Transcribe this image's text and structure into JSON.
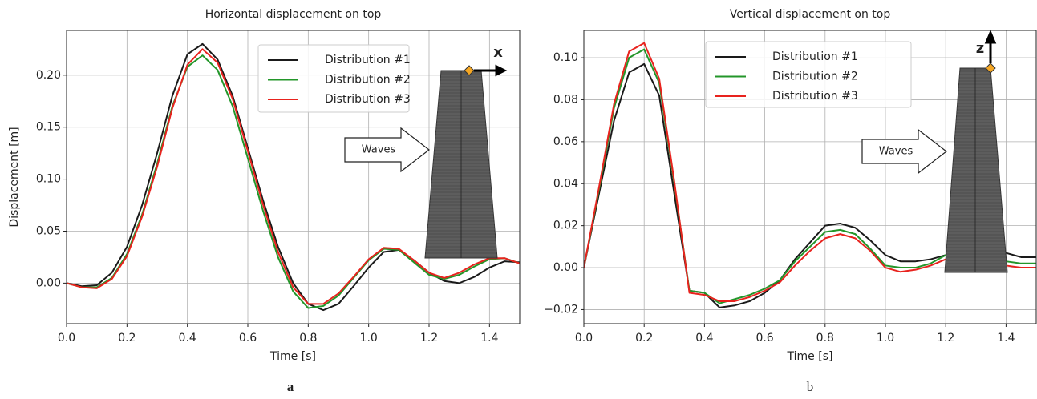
{
  "chart_data": [
    {
      "type": "line",
      "title": "Horizontal displacement on top",
      "x_label": "Time  [s]",
      "y_label": "Displacement [m]",
      "panel_label": "a",
      "annotations": [
        "Waves",
        "x"
      ],
      "x": [
        0,
        0.05,
        0.1,
        0.15,
        0.2,
        0.25,
        0.3,
        0.35,
        0.4,
        0.45,
        0.5,
        0.55,
        0.6,
        0.65,
        0.7,
        0.75,
        0.8,
        0.85,
        0.9,
        0.95,
        1.0,
        1.05,
        1.1,
        1.15,
        1.2,
        1.25,
        1.3,
        1.35,
        1.4,
        1.45,
        1.5
      ],
      "series": [
        {
          "name": "Distribution #1",
          "color": "#1a1a1a",
          "values": [
            0,
            -0.003,
            -0.002,
            0.01,
            0.035,
            0.075,
            0.125,
            0.18,
            0.22,
            0.23,
            0.215,
            0.18,
            0.13,
            0.08,
            0.035,
            0.0,
            -0.02,
            -0.026,
            -0.02,
            -0.003,
            0.015,
            0.03,
            0.032,
            0.022,
            0.01,
            0.002,
            0.0,
            0.006,
            0.015,
            0.021,
            0.02
          ]
        },
        {
          "name": "Distribution #2",
          "color": "#23962a",
          "values": [
            0,
            -0.004,
            -0.004,
            0.005,
            0.028,
            0.066,
            0.115,
            0.17,
            0.208,
            0.219,
            0.205,
            0.17,
            0.12,
            0.07,
            0.025,
            -0.008,
            -0.024,
            -0.022,
            -0.012,
            0.005,
            0.022,
            0.033,
            0.032,
            0.02,
            0.008,
            0.004,
            0.008,
            0.016,
            0.023,
            0.024,
            0.019
          ]
        },
        {
          "name": "Distribution #3",
          "color": "#e8231e",
          "values": [
            0,
            -0.004,
            -0.005,
            0.004,
            0.026,
            0.064,
            0.112,
            0.168,
            0.21,
            0.225,
            0.212,
            0.177,
            0.127,
            0.076,
            0.03,
            -0.004,
            -0.02,
            -0.02,
            -0.01,
            0.006,
            0.023,
            0.034,
            0.033,
            0.022,
            0.01,
            0.005,
            0.01,
            0.018,
            0.024,
            0.024,
            0.019
          ]
        }
      ],
      "xlim": [
        0,
        1.5
      ],
      "ylim": [
        -0.039,
        0.243
      ],
      "xticks": [
        {
          "value": 0,
          "label": "0.0"
        },
        {
          "value": 0.2,
          "label": "0.2"
        },
        {
          "value": 0.4,
          "label": "0.4"
        },
        {
          "value": 0.6,
          "label": "0.6"
        },
        {
          "value": 0.8,
          "label": "0.8"
        },
        {
          "value": 1.0,
          "label": "1.0"
        },
        {
          "value": 1.2,
          "label": "1.2"
        },
        {
          "value": 1.4,
          "label": "1.4"
        }
      ],
      "yticks": [
        {
          "value": 0,
          "label": "0.00"
        },
        {
          "value": 0.05,
          "label": "0.05"
        },
        {
          "value": 0.1,
          "label": "0.10"
        },
        {
          "value": 0.15,
          "label": "0.15"
        },
        {
          "value": 0.2,
          "label": "0.20"
        }
      ],
      "grid": true
    },
    {
      "type": "line",
      "title": "Vertical displacement on top",
      "x_label": "Time  [s]",
      "panel_label": "b",
      "annotations": [
        "Waves",
        "z"
      ],
      "x": [
        0,
        0.05,
        0.1,
        0.15,
        0.2,
        0.25,
        0.3,
        0.35,
        0.4,
        0.45,
        0.5,
        0.55,
        0.6,
        0.65,
        0.7,
        0.75,
        0.8,
        0.85,
        0.9,
        0.95,
        1.0,
        1.05,
        1.1,
        1.15,
        1.2,
        1.25,
        1.3,
        1.35,
        1.4,
        1.45,
        1.5
      ],
      "series": [
        {
          "name": "Distribution #1",
          "color": "#1a1a1a",
          "values": [
            0,
            0.035,
            0.07,
            0.093,
            0.097,
            0.082,
            0.035,
            -0.011,
            -0.012,
            -0.019,
            -0.018,
            -0.016,
            -0.012,
            -0.006,
            0.004,
            0.012,
            0.02,
            0.021,
            0.019,
            0.013,
            0.006,
            0.003,
            0.003,
            0.004,
            0.006,
            0.009,
            0.011,
            0.01,
            0.007,
            0.005,
            0.005
          ]
        },
        {
          "name": "Distribution #2",
          "color": "#23962a",
          "values": [
            0,
            0.037,
            0.076,
            0.1,
            0.104,
            0.088,
            0.04,
            -0.011,
            -0.012,
            -0.017,
            -0.015,
            -0.013,
            -0.01,
            -0.006,
            0.003,
            0.01,
            0.017,
            0.018,
            0.016,
            0.009,
            0.001,
            0.0,
            0.0,
            0.002,
            0.006,
            0.007,
            0.007,
            0.005,
            0.003,
            0.002,
            0.002
          ]
        },
        {
          "name": "Distribution #3",
          "color": "#e8231e",
          "values": [
            0,
            0.038,
            0.078,
            0.103,
            0.107,
            0.09,
            0.041,
            -0.012,
            -0.013,
            -0.016,
            -0.016,
            -0.014,
            -0.011,
            -0.007,
            0.001,
            0.008,
            0.014,
            0.016,
            0.014,
            0.008,
            0.0,
            -0.002,
            -0.001,
            0.001,
            0.004,
            0.005,
            0.005,
            0.003,
            0.001,
            0.0,
            0.0
          ]
        }
      ],
      "xlim": [
        0,
        1.5
      ],
      "ylim": [
        -0.0267,
        0.113
      ],
      "xticks": [
        {
          "value": 0,
          "label": "0.0"
        },
        {
          "value": 0.2,
          "label": "0.2"
        },
        {
          "value": 0.4,
          "label": "0.4"
        },
        {
          "value": 0.6,
          "label": "0.6"
        },
        {
          "value": 0.8,
          "label": "0.8"
        },
        {
          "value": 1.0,
          "label": "1.0"
        },
        {
          "value": 1.2,
          "label": "1.2"
        },
        {
          "value": 1.4,
          "label": "1.4"
        }
      ],
      "yticks": [
        {
          "value": -0.02,
          "label": "−0.02"
        },
        {
          "value": 0,
          "label": "0.00"
        },
        {
          "value": 0.02,
          "label": "0.02"
        },
        {
          "value": 0.04,
          "label": "0.04"
        },
        {
          "value": 0.06,
          "label": "0.06"
        },
        {
          "value": 0.08,
          "label": "0.08"
        },
        {
          "value": 0.1,
          "label": "0.10"
        }
      ],
      "grid": true
    }
  ]
}
